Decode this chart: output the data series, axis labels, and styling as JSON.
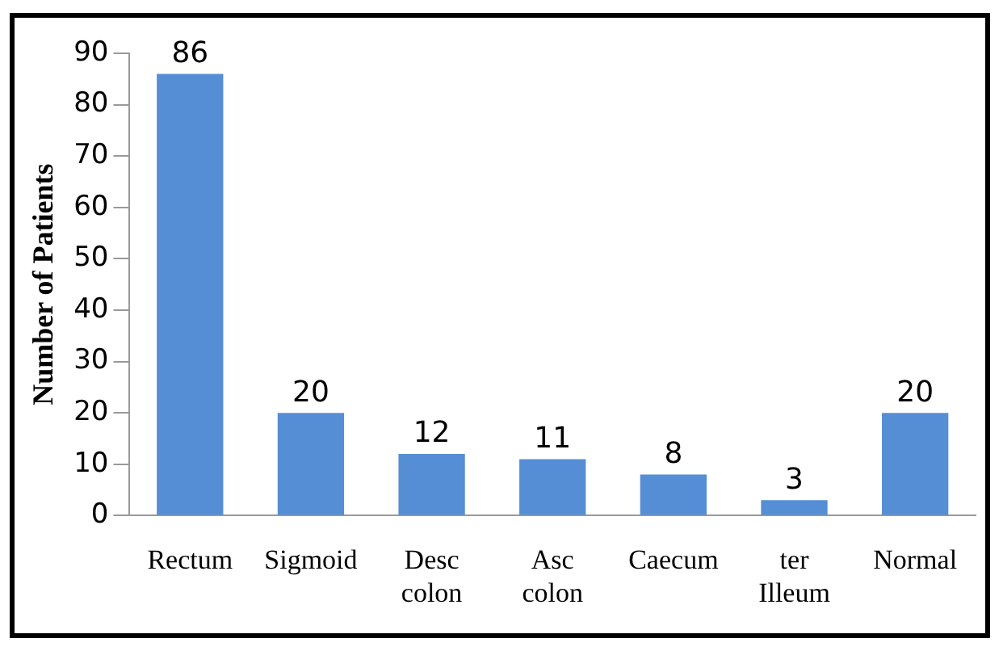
{
  "chart_data": {
    "type": "bar",
    "ylabel": "Number of Patients",
    "categories": [
      "Rectum",
      "Sigmoid",
      "Desc colon",
      "Asc colon",
      "Caecum",
      "ter Illeum",
      "Normal"
    ],
    "values": [
      86,
      20,
      12,
      11,
      8,
      3,
      20
    ],
    "color": "#558ed5",
    "ylim": [
      0,
      90
    ],
    "yticks": [
      0,
      10,
      20,
      30,
      40,
      50,
      60,
      70,
      80,
      90
    ],
    "grid": false,
    "legend": false,
    "data_labels": true
  }
}
